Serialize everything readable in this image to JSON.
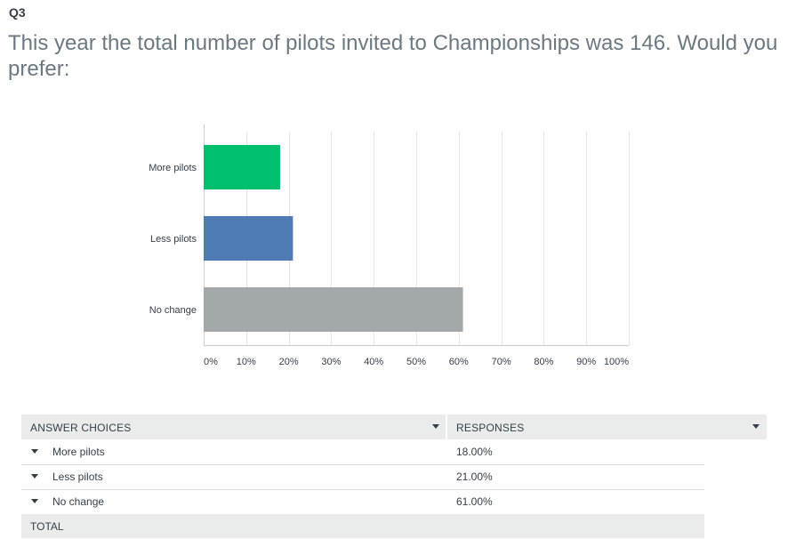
{
  "question": {
    "number": "Q3",
    "text": "This year the total number of pilots invited to Championships was 146. Would you prefer:"
  },
  "chart_data": {
    "type": "bar",
    "orientation": "horizontal",
    "categories": [
      "More pilots",
      "Less pilots",
      "No change"
    ],
    "values": [
      18,
      21,
      61
    ],
    "unit": "%",
    "colors": [
      "#00bf6f",
      "#507cb6",
      "#a3a8ab"
    ],
    "xlim": [
      0,
      100
    ],
    "xticks": [
      "0%",
      "10%",
      "20%",
      "30%",
      "40%",
      "50%",
      "60%",
      "70%",
      "80%",
      "90%",
      "100%"
    ],
    "grid": true
  },
  "table": {
    "headers": {
      "choices": "ANSWER CHOICES",
      "responses": "RESPONSES"
    },
    "rows": [
      {
        "label": "More pilots",
        "value": "18.00%"
      },
      {
        "label": "Less pilots",
        "value": "21.00%"
      },
      {
        "label": "No change",
        "value": "61.00%"
      }
    ],
    "total_label": "TOTAL"
  }
}
